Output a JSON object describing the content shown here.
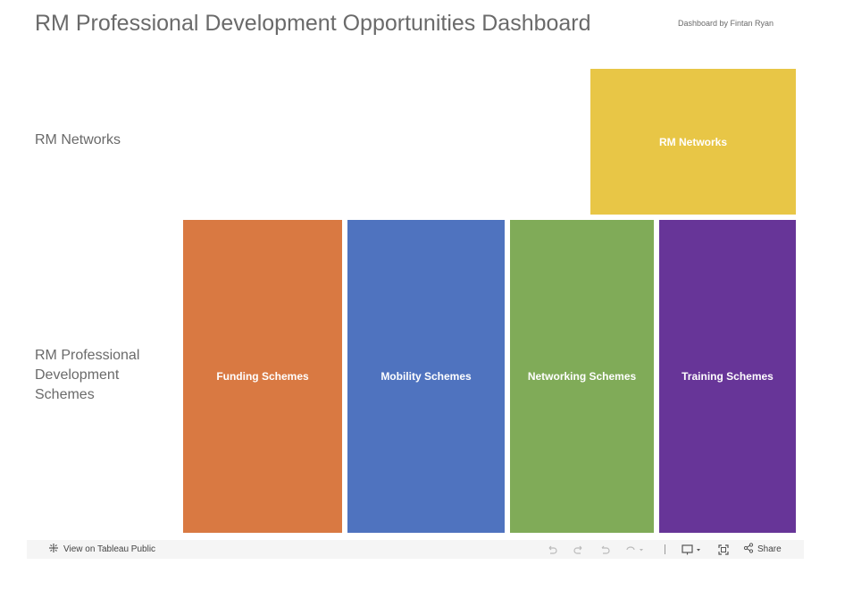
{
  "header": {
    "title": "RM Professional Development Opportunities Dashboard",
    "byline": "Dashboard by Fintan Ryan"
  },
  "rows": {
    "networks_label": "RM Networks",
    "schemes_label": "RM Professional Development Schemes"
  },
  "tiles": [
    {
      "label": "RM Networks",
      "color": "#e8c646"
    },
    {
      "label": "Funding Schemes",
      "color": "#d97942"
    },
    {
      "label": "Mobility Schemes",
      "color": "#4f73bf"
    },
    {
      "label": "Networking Schemes",
      "color": "#80ab58"
    },
    {
      "label": "Training Schemes",
      "color": "#673598"
    }
  ],
  "toolbar": {
    "view_label": "View on Tableau Public",
    "share_label": "Share",
    "icons": [
      "tableau-icon",
      "undo-icon",
      "redo-icon",
      "revert-icon",
      "refresh-icon",
      "download-icon",
      "fullscreen-icon",
      "share-icon"
    ]
  }
}
